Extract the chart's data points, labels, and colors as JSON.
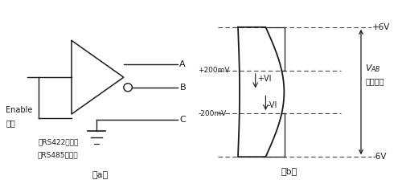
{
  "fig_width": 5.0,
  "fig_height": 2.29,
  "label_a": "A",
  "label_b": "B",
  "label_c": "C",
  "enable_text1": "Enable",
  "enable_text2": "使能",
  "note1": "对RS422是可选",
  "note2": "对RS485是必须",
  "caption_a": "（a）",
  "caption_b": "（b）",
  "plus6v": "+6V",
  "minus6v": "-6V",
  "plus200mv": "+200mV",
  "minus200mv": "-200mV",
  "plus_vi": "+VI",
  "minus_vi": "-VI",
  "vab_text": "电压范围",
  "line_color": "#1a1a1a",
  "dashed_color": "#444444"
}
